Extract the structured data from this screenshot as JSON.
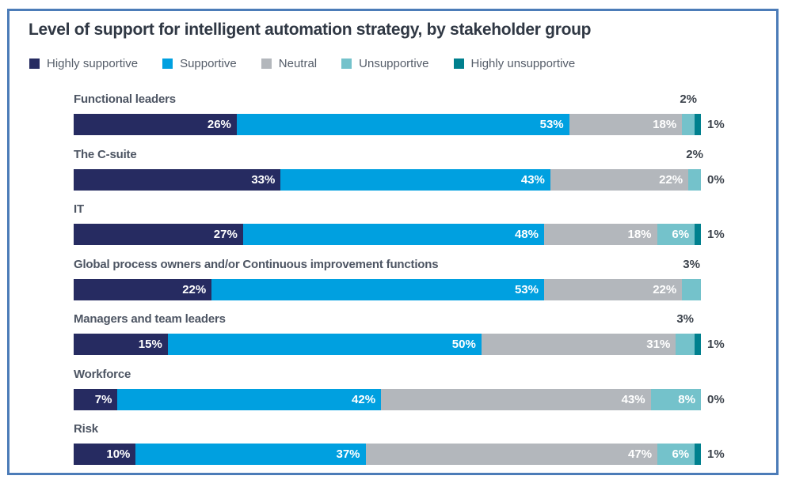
{
  "title": "Level of support for intelligent automation strategy, by stakeholder group",
  "colors": {
    "frame_border": "#4c7cb8",
    "title_text": "#303844",
    "category_text": "#4d5563",
    "outside_value_text": "#3c434c",
    "legend_text": "#555d69",
    "in_bar_value_text": "#ffffff"
  },
  "chart_data": {
    "type": "bar",
    "orientation": "horizontal_stacked",
    "title": "Level of support for intelligent automation strategy, by stakeholder group",
    "value_unit": "%",
    "xlim": [
      0,
      100
    ],
    "grid": false,
    "legend_position": "top",
    "categories": [
      "Functional leaders",
      "The C-suite",
      "IT",
      "Global process owners and/or Continuous improvement functions",
      "Managers and team leaders",
      "Workforce",
      "Risk"
    ],
    "series": [
      {
        "name": "Highly supportive",
        "color": "#262b61",
        "values": [
          26,
          33,
          27,
          22,
          15,
          7,
          10
        ]
      },
      {
        "name": "Supportive",
        "color": "#00a0e0",
        "values": [
          53,
          43,
          48,
          53,
          50,
          42,
          37
        ]
      },
      {
        "name": "Neutral",
        "color": "#b3b7bc",
        "values": [
          18,
          22,
          18,
          22,
          31,
          43,
          47
        ]
      },
      {
        "name": "Unsupportive",
        "color": "#74c2cb",
        "values": [
          2,
          2,
          6,
          3,
          3,
          8,
          6
        ]
      },
      {
        "name": "Highly unsupportive",
        "color": "#00808e",
        "values": [
          1,
          0,
          1,
          null,
          1,
          0,
          1
        ]
      }
    ],
    "value_labels": {
      "inside_threshold_note": "values under 5% on Unsupportive shown above bar; Highly unsupportive values shown right of bar"
    }
  }
}
